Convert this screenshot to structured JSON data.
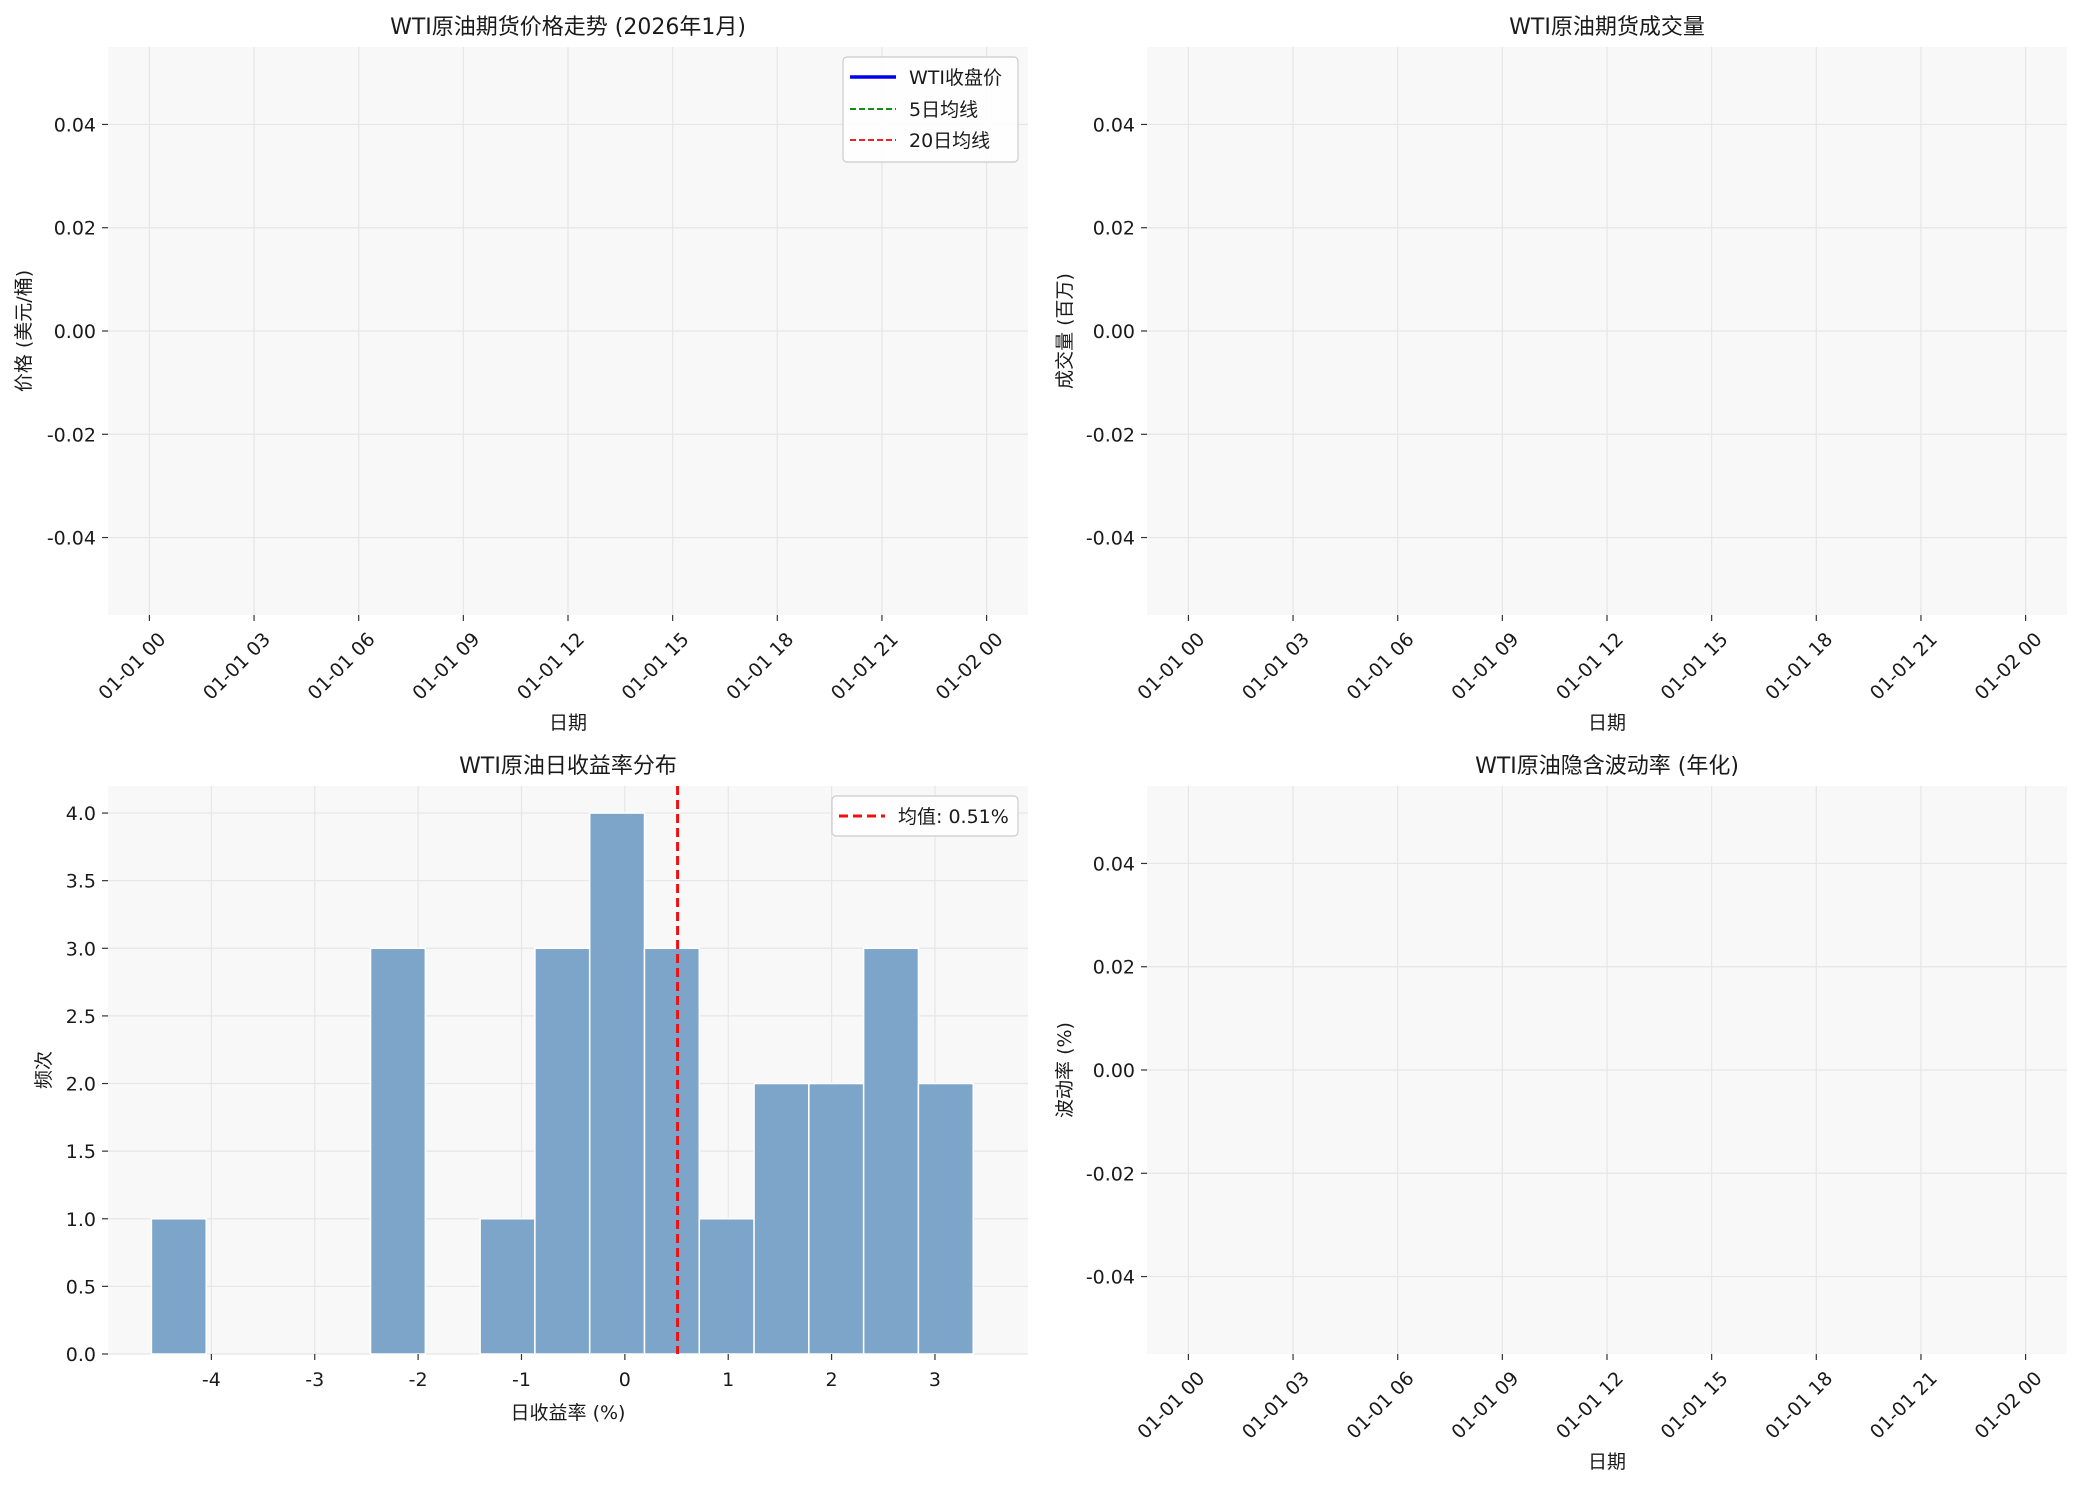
{
  "colors": {
    "plot_bg": "#f8f8f8",
    "grid": "#e6e6e6",
    "price_line": "#0000ee",
    "ma5_line": "#1a8a1a",
    "ma20_line": "#ee2222",
    "hist_bar": "#7ca5c9",
    "mean_line": "#ee1111"
  },
  "chart_data": [
    {
      "type": "line",
      "title": "WTI原油期货价格走势 (2026年1月)",
      "xlabel": "日期",
      "ylabel": "价格 (美元/桶)",
      "x_ticks": [
        "01-01 00",
        "01-01 03",
        "01-01 06",
        "01-01 09",
        "01-01 12",
        "01-01 15",
        "01-01 18",
        "01-01 21",
        "01-02 00"
      ],
      "y_ticks": [
        "0.04",
        "0.02",
        "0.00",
        "-0.02",
        "-0.04"
      ],
      "ylim": [
        -0.055,
        0.055
      ],
      "grid": true,
      "legend_position": "top-right",
      "series": [
        {
          "name": "WTI收盘价",
          "values": []
        },
        {
          "name": "5日均线",
          "values": []
        },
        {
          "name": "20日均线",
          "values": []
        }
      ]
    },
    {
      "type": "line",
      "title": "WTI原油期货成交量",
      "xlabel": "日期",
      "ylabel": "成交量 (百万)",
      "x_ticks": [
        "01-01 00",
        "01-01 03",
        "01-01 06",
        "01-01 09",
        "01-01 12",
        "01-01 15",
        "01-01 18",
        "01-01 21",
        "01-02 00"
      ],
      "y_ticks": [
        "0.04",
        "0.02",
        "0.00",
        "-0.02",
        "-0.04"
      ],
      "ylim": [
        -0.055,
        0.055
      ],
      "grid": true,
      "series": []
    },
    {
      "type": "bar",
      "title": "WTI原油日收益率分布",
      "xlabel": "日收益率 (%)",
      "ylabel": "频次",
      "x_ticks": [
        "-4",
        "-3",
        "-2",
        "-1",
        "0",
        "1",
        "2",
        "3"
      ],
      "y_ticks": [
        "0.0",
        "0.5",
        "1.0",
        "1.5",
        "2.0",
        "2.5",
        "3.0",
        "3.5",
        "4.0"
      ],
      "xlim": [
        -5.0,
        3.9
      ],
      "ylim": [
        0,
        4.2
      ],
      "grid": true,
      "legend_position": "top-right",
      "bin_edges": [
        -4.58,
        -4.05,
        -3.52,
        -2.99,
        -2.46,
        -1.93,
        -1.4,
        -0.87,
        -0.34,
        0.19,
        0.72,
        1.25,
        1.78,
        2.31,
        2.84,
        3.37
      ],
      "bin_edges_note": "",
      "values": [
        1,
        0,
        0,
        0,
        3,
        0,
        1,
        3,
        4,
        3,
        1,
        2,
        2,
        3,
        2
      ],
      "mean": 0.51,
      "mean_label": "均值: 0.51%"
    },
    {
      "type": "line",
      "title": "WTI原油隐含波动率 (年化)",
      "xlabel": "日期",
      "ylabel": "波动率 (%)",
      "x_ticks": [
        "01-01 00",
        "01-01 03",
        "01-01 06",
        "01-01 09",
        "01-01 12",
        "01-01 15",
        "01-01 18",
        "01-01 21",
        "01-02 00"
      ],
      "y_ticks": [
        "0.04",
        "0.02",
        "0.00",
        "-0.02",
        "-0.04"
      ],
      "ylim": [
        -0.055,
        0.055
      ],
      "grid": true,
      "series": []
    }
  ]
}
